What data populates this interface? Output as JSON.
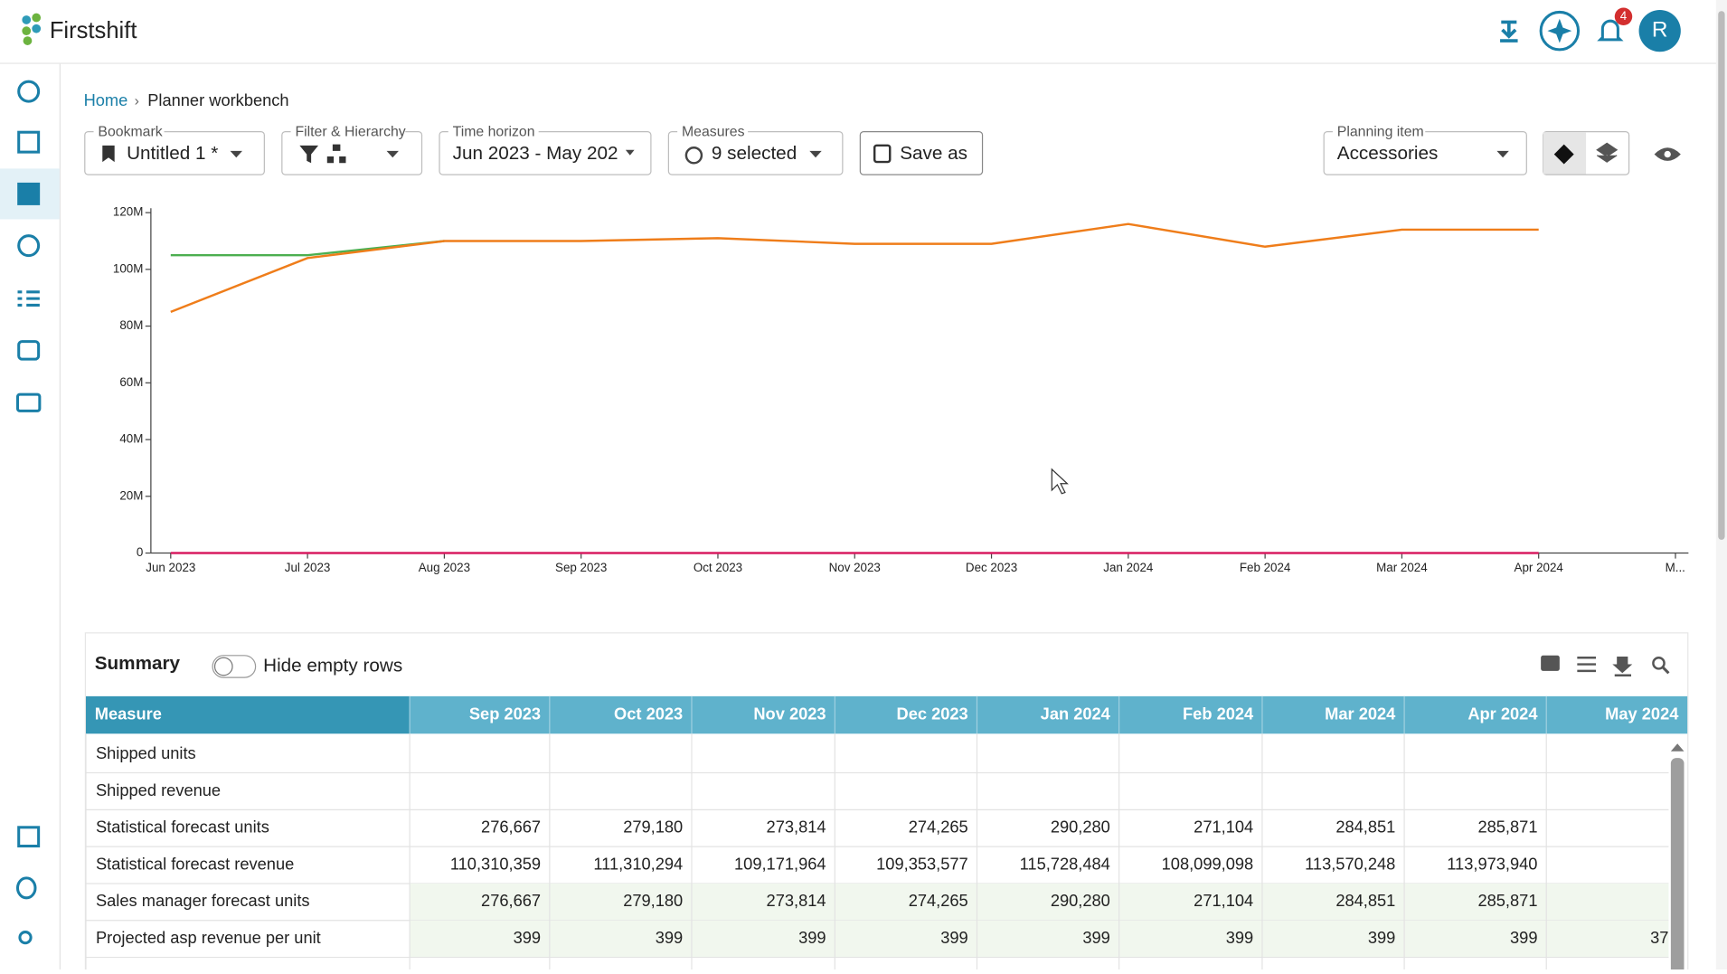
{
  "header": {
    "brand": "Firstshift",
    "notification_count": 4,
    "avatar": "R"
  },
  "breadcrumb": {
    "home": "Home",
    "current": "Planner workbench"
  },
  "toolbar": {
    "bookmark_label": "Bookmark",
    "bookmark_value": "Untitled 1 *",
    "filter_label": "Filter & Hierarchy",
    "time_label": "Time horizon",
    "time_value": "Jun 2023 - May 202",
    "measures_label": "Measures",
    "measures_value": "9 selected",
    "save_as": "Save as",
    "planning_label": "Planning item",
    "planning_value": "Accessories"
  },
  "chart_data": {
    "type": "line",
    "categories": [
      "Jun 2023",
      "Jul 2023",
      "Aug 2023",
      "Sep 2023",
      "Oct 2023",
      "Nov 2023",
      "Dec 2023",
      "Jan 2024",
      "Feb 2024",
      "Mar 2024",
      "Apr 2024",
      "M..."
    ],
    "series": [
      {
        "color": "#4caf50",
        "values": [
          105000000,
          105000000,
          110000000,
          null,
          null,
          null,
          null,
          null,
          null,
          null,
          null,
          null
        ]
      },
      {
        "color": "#ef7d1a",
        "values": [
          85000000,
          104000000,
          110000000,
          110000000,
          111000000,
          109000000,
          109000000,
          116000000,
          108000000,
          114000000,
          114000000,
          null
        ]
      },
      {
        "color": "#d81b60",
        "values": [
          0,
          0,
          0,
          0,
          0,
          0,
          0,
          0,
          0,
          0,
          0,
          null
        ]
      }
    ],
    "ylim": [
      0,
      120000000
    ],
    "yticks": [
      {
        "value": 0,
        "label": "0"
      },
      {
        "value": 20000000,
        "label": "20M"
      },
      {
        "value": 40000000,
        "label": "40M"
      },
      {
        "value": 60000000,
        "label": "60M"
      },
      {
        "value": 80000000,
        "label": "80M"
      },
      {
        "value": 100000000,
        "label": "100M"
      },
      {
        "value": 120000000,
        "label": "120M"
      }
    ],
    "grid": false
  },
  "summary": {
    "title": "Summary",
    "toggle": "Hide empty rows"
  },
  "table": {
    "columns": [
      "Measure",
      "Sep 2023",
      "Oct 2023",
      "Nov 2023",
      "Dec 2023",
      "Jan 2024",
      "Feb 2024",
      "Mar 2024",
      "Apr 2024",
      "May 2024"
    ],
    "rows": [
      [
        "Shipped units",
        null,
        null,
        null,
        null,
        null,
        null,
        null,
        null,
        null
      ],
      [
        "Shipped revenue",
        null,
        null,
        null,
        null,
        null,
        null,
        null,
        null,
        null
      ],
      [
        "Statistical forecast units",
        "276,667",
        "279,180",
        "273,814",
        "274,265",
        "290,280",
        "271,104",
        "284,851",
        "285,871",
        null
      ],
      [
        "Statistical forecast revenue",
        "110,310,359",
        "111,310,294",
        "109,171,964",
        "109,353,577",
        "115,728,484",
        "108,099,098",
        "113,570,248",
        "113,973,940",
        null
      ],
      [
        "Sales manager forecast units",
        "276,667",
        "279,180",
        "273,814",
        "274,265",
        "290,280",
        "271,104",
        "284,851",
        "285,871",
        null
      ],
      [
        "Projected asp revenue per unit",
        "399",
        "399",
        "399",
        "399",
        "399",
        "399",
        "399",
        "399",
        "37"
      ]
    ]
  }
}
